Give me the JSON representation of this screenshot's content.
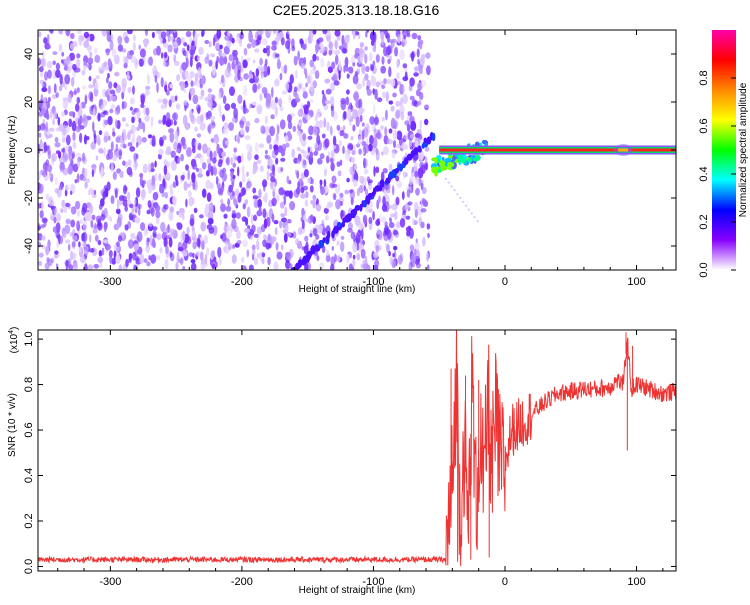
{
  "chart_data": [
    {
      "type": "heatmap",
      "title": "C2E5.2025.313.18.18.G16",
      "xlabel": "Height of straight line (km)",
      "ylabel": "Frequency (Hz)",
      "xlim": [
        -355,
        130
      ],
      "ylim": [
        -50,
        50
      ],
      "x_ticks": [
        -300,
        -200,
        -100,
        0,
        100
      ],
      "x_tick_labels": [
        "-300",
        "-200",
        "-100",
        "0",
        "100"
      ],
      "y_ticks": [
        -40,
        -20,
        0,
        20,
        40
      ],
      "y_tick_labels": [
        "-40",
        "-20",
        "0",
        "20",
        "40"
      ],
      "noise_region_x": [
        -355,
        -58
      ],
      "chirp_track": {
        "x": [
          -160,
          -55
        ],
        "y": [
          -50,
          6
        ]
      },
      "carrier_line": {
        "x_start": -50,
        "x_end": 130,
        "frequency": 0,
        "amplitude": 0.9
      },
      "colorbar": {
        "label": "Normalized spectral amplitude",
        "range": [
          0,
          1
        ],
        "ticks": [
          0.0,
          0.2,
          0.4,
          0.6,
          0.8
        ],
        "tick_labels": [
          "0.0",
          "0.2",
          "0.4",
          "0.6",
          "0.8"
        ],
        "colors": [
          "#ffffff",
          "#8800ff",
          "#0000ff",
          "#00ffff",
          "#00ff00",
          "#ffff00",
          "#ff8800",
          "#ff0000",
          "#ff00aa"
        ]
      }
    },
    {
      "type": "line",
      "xlabel": "Height of straight line (km)",
      "ylabel": "SNR (10 * v/v)",
      "y_multiplier": "(x10",
      "y_multiplier_exp": "4",
      "y_multiplier_close": ")",
      "xlim": [
        -355,
        130
      ],
      "ylim": [
        -0.02,
        1.04
      ],
      "x_ticks": [
        -300,
        -200,
        -100,
        0,
        100
      ],
      "x_tick_labels": [
        "-300",
        "-200",
        "-100",
        "0",
        "100"
      ],
      "y_ticks": [
        0.0,
        0.2,
        0.4,
        0.6,
        0.8,
        1.0
      ],
      "y_tick_labels": [
        "0.0",
        "0.2",
        "0.4",
        "0.6",
        "0.8",
        "1.0"
      ],
      "series": [
        {
          "name": "SNR",
          "color": "#ee3333",
          "x": [
            -355,
            -45,
            -40,
            -37,
            -34,
            -31,
            -28,
            -25,
            -22,
            -19,
            -16,
            -13,
            -10,
            -7,
            -4,
            0,
            5,
            10,
            20,
            30,
            40,
            50,
            60,
            70,
            80,
            85,
            90,
            93,
            96,
            100,
            110,
            120,
            130
          ],
          "values": [
            0.03,
            0.03,
            0.35,
            0.85,
            0.2,
            0.55,
            0.15,
            0.8,
            0.25,
            0.6,
            0.3,
            0.75,
            0.4,
            0.65,
            0.45,
            0.45,
            0.6,
            0.62,
            0.67,
            0.72,
            0.76,
            0.77,
            0.78,
            0.78,
            0.79,
            0.82,
            0.8,
            1.0,
            0.78,
            0.8,
            0.78,
            0.76,
            0.77
          ],
          "spikes": [
            {
              "x": -41,
              "y": 0.87
            },
            {
              "x": -36,
              "y": 0.02
            },
            {
              "x": -30,
              "y": 0.84
            },
            {
              "x": -26,
              "y": 0.03
            },
            {
              "x": -20,
              "y": 0.82
            },
            {
              "x": -12,
              "y": 0.04
            },
            {
              "x": -5,
              "y": 0.78
            },
            {
              "x": 92,
              "y": 1.03
            },
            {
              "x": 93,
              "y": 0.51
            },
            {
              "x": 97,
              "y": 0.97
            }
          ]
        }
      ]
    }
  ]
}
